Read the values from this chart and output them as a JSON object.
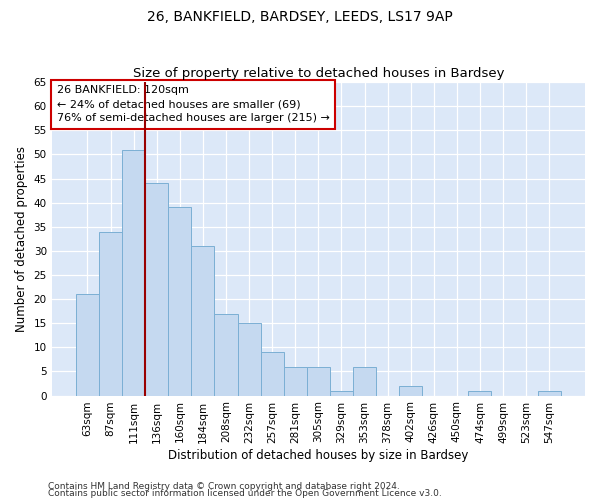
{
  "title1": "26, BANKFIELD, BARDSEY, LEEDS, LS17 9AP",
  "title2": "Size of property relative to detached houses in Bardsey",
  "xlabel": "Distribution of detached houses by size in Bardsey",
  "ylabel": "Number of detached properties",
  "categories": [
    "63sqm",
    "87sqm",
    "111sqm",
    "136sqm",
    "160sqm",
    "184sqm",
    "208sqm",
    "232sqm",
    "257sqm",
    "281sqm",
    "305sqm",
    "329sqm",
    "353sqm",
    "378sqm",
    "402sqm",
    "426sqm",
    "450sqm",
    "474sqm",
    "499sqm",
    "523sqm",
    "547sqm"
  ],
  "values": [
    21,
    34,
    51,
    44,
    39,
    31,
    17,
    15,
    9,
    6,
    6,
    1,
    6,
    0,
    2,
    0,
    0,
    1,
    0,
    0,
    1
  ],
  "bar_color": "#c5d9f0",
  "bar_edge_color": "#7bafd4",
  "background_color": "#dce8f8",
  "fig_background_color": "#ffffff",
  "grid_color": "#ffffff",
  "vline_x_index": 2.5,
  "vline_color": "#990000",
  "annotation_line1": "26 BANKFIELD: 120sqm",
  "annotation_line2": "← 24% of detached houses are smaller (69)",
  "annotation_line3": "76% of semi-detached houses are larger (215) →",
  "annotation_box_color": "#ffffff",
  "annotation_box_edge_color": "#cc0000",
  "ylim": [
    0,
    65
  ],
  "yticks": [
    0,
    5,
    10,
    15,
    20,
    25,
    30,
    35,
    40,
    45,
    50,
    55,
    60,
    65
  ],
  "footer1": "Contains HM Land Registry data © Crown copyright and database right 2024.",
  "footer2": "Contains public sector information licensed under the Open Government Licence v3.0.",
  "title_fontsize": 10,
  "axis_label_fontsize": 8.5,
  "tick_fontsize": 7.5,
  "annotation_fontsize": 8,
  "footer_fontsize": 6.5
}
